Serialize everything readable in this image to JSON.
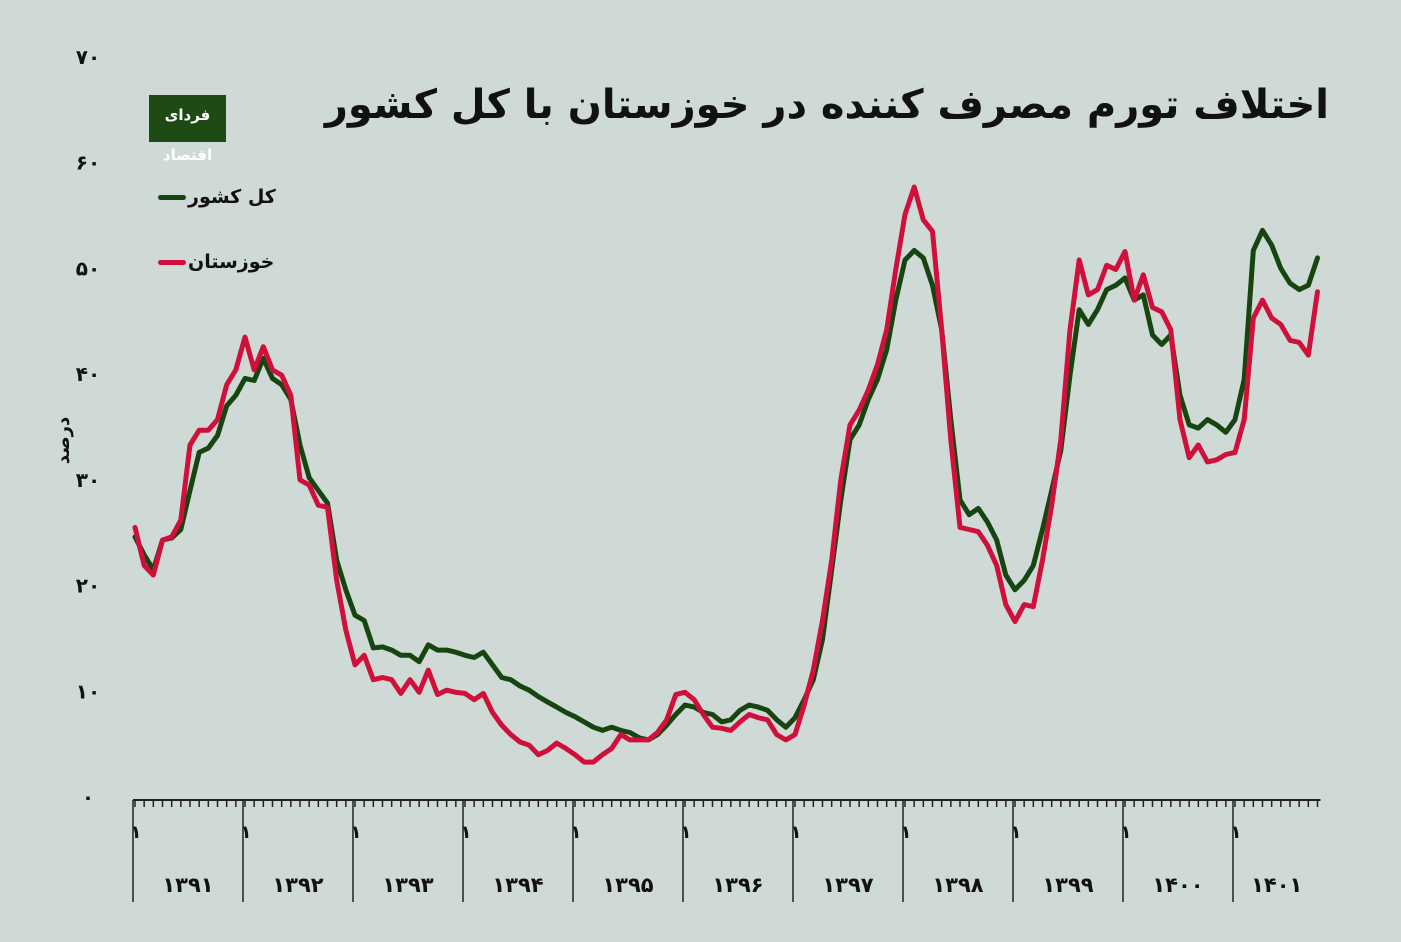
{
  "chart_data": {
    "type": "line",
    "title": "اختلاف تورم مصرف کننده در خوزستان با کل کشور",
    "ylabel": "درصد",
    "xlabel": "",
    "ylim": [
      0,
      70
    ],
    "yticks": [
      "۰",
      "۱۰",
      "۲۰",
      "۳۰",
      "۴۰",
      "۵۰",
      "۶۰",
      "۷۰"
    ],
    "years": [
      "۱۳۹۱",
      "۱۳۹۲",
      "۱۳۹۳",
      "۱۳۹۴",
      "۱۳۹۵",
      "۱۳۹۶",
      "۱۳۹۷",
      "۱۳۹۸",
      "۱۳۹۹",
      "۱۴۰۰",
      "۱۴۰۱"
    ],
    "month_label": "۱",
    "grid": false,
    "legend_position": "top-left",
    "series": [
      {
        "name": "کل کشور",
        "color": "#164510",
        "values": [
          24.6,
          22.9,
          21.5,
          24.3,
          24.5,
          25.3,
          29,
          32.6,
          33,
          34.2,
          37,
          38,
          39.6,
          39.4,
          41.5,
          39.6,
          39,
          37.6,
          33.3,
          30.2,
          29,
          27.8,
          22.4,
          19.6,
          17.2,
          16.7,
          14.1,
          14.2,
          13.9,
          13.4,
          13.4,
          12.8,
          14.4,
          13.9,
          13.9,
          13.7,
          13.4,
          13.2,
          13.7,
          12.5,
          11.3,
          11.1,
          10.5,
          10.1,
          9.5,
          9,
          8.5,
          8,
          7.6,
          7.1,
          6.6,
          6.3,
          6.6,
          6.3,
          6.1,
          5.6,
          5.4,
          5.9,
          6.8,
          7.8,
          8.7,
          8.5,
          8,
          7.8,
          7.1,
          7.3,
          8.2,
          8.7,
          8.5,
          8.2,
          7.3,
          6.6,
          7.5,
          9.2,
          11.1,
          14.9,
          21.5,
          28.1,
          33.8,
          35.2,
          37.6,
          39.5,
          42.3,
          47,
          50.8,
          51.7,
          51,
          48.4,
          44.2,
          35.7,
          28.1,
          26.7,
          27.3,
          26,
          24.3,
          21,
          19.6,
          20.5,
          21.9,
          25.3,
          29,
          32.8,
          39.9,
          46.1,
          44.7,
          46.1,
          48,
          48.4,
          49.1,
          47,
          47.5,
          43.7,
          42.8,
          43.7,
          38,
          35.2,
          34.9,
          35.7,
          35.2,
          34.5,
          35.7,
          39.5,
          51.7,
          53.6,
          52.2,
          50,
          48.6,
          48,
          48.4,
          51
        ]
      },
      {
        "name": "خوزستان",
        "color": "#d0103a",
        "values": [
          25.5,
          21.9,
          21,
          24.3,
          24.6,
          26.2,
          33.3,
          34.7,
          34.7,
          35.7,
          39,
          40.4,
          43.5,
          40.4,
          42.6,
          40.4,
          39.9,
          38,
          30,
          29.5,
          27.6,
          27.4,
          20.5,
          15.8,
          12.5,
          13.4,
          11.1,
          11.3,
          11.1,
          9.8,
          11.1,
          9.9,
          12,
          9.7,
          10.1,
          9.9,
          9.8,
          9.2,
          9.8,
          8,
          6.8,
          5.9,
          5.2,
          4.9,
          4,
          4.4,
          5.1,
          4.6,
          4,
          3.3,
          3.3,
          4,
          4.6,
          5.9,
          5.4,
          5.4,
          5.4,
          6.1,
          7.3,
          9.7,
          9.9,
          9.2,
          7.8,
          6.6,
          6.5,
          6.3,
          7.1,
          7.8,
          7.5,
          7.3,
          5.9,
          5.4,
          5.9,
          8.7,
          12,
          16.7,
          22.4,
          30,
          35.2,
          36.6,
          38.5,
          40.9,
          44.2,
          49.9,
          55.1,
          57.7,
          54.6,
          53.5,
          44.2,
          33.8,
          25.5,
          25.3,
          25.1,
          23.8,
          21.9,
          18.2,
          16.6,
          18.2,
          18,
          22.4,
          27.6,
          33.8,
          44.2,
          50.8,
          47.5,
          48,
          50.3,
          49.9,
          51.6,
          47,
          49.4,
          46.3,
          45.9,
          44.2,
          35.7,
          32.1,
          33.3,
          31.7,
          31.9,
          32.4,
          32.6,
          35.7,
          45.3,
          47,
          45.3,
          44.7,
          43.2,
          43,
          41.8,
          47.8
        ]
      }
    ]
  },
  "logo_text": "فردای اقتصاد"
}
